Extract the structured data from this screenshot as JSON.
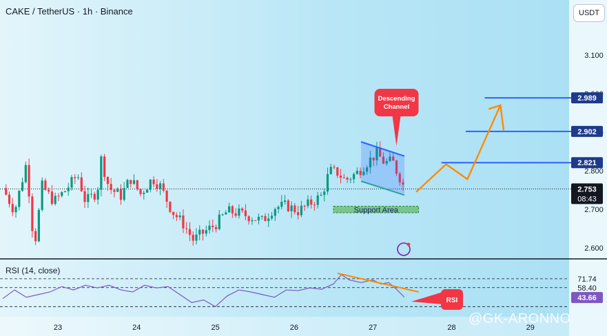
{
  "header": {
    "title": "CAKE / TetherUS · 1h · Binance"
  },
  "currency_label": "USDT",
  "watermark": "@GK-ARONNO",
  "annotations": {
    "channel": [
      "Descending",
      "Channel"
    ],
    "support": "Support Area",
    "rsi": "RSI"
  },
  "colors": {
    "up": "#089981",
    "down": "#f23645",
    "level": "#2962ff",
    "projection": "#ff8a00",
    "callout": "#f23645",
    "support_fill": "#66bb6a",
    "rsi_line": "#7e57c2"
  },
  "chart_data": [
    {
      "type": "candlestick",
      "x_ticks": [
        "23",
        "24",
        "25",
        "26",
        "27",
        "28",
        "29"
      ],
      "y_ticks": [
        "3.100",
        "3.000",
        "2.900",
        "2.800",
        "2.700",
        "2.600"
      ],
      "ylim": [
        2.56,
        3.16
      ],
      "current_price": {
        "label": "2.753",
        "countdown": "08:43"
      },
      "levels": [
        {
          "label": "2.989",
          "value": 2.989
        },
        {
          "label": "2.902",
          "value": 2.902
        },
        {
          "label": "2.821",
          "value": 2.821
        }
      ],
      "support_area": [
        2.691,
        2.708
      ],
      "descending_channel": {
        "upper": [
          [
            26.85,
            2.875
          ],
          [
            27.4,
            2.838
          ]
        ],
        "lower": [
          [
            26.85,
            2.773
          ],
          [
            27.4,
            2.737
          ]
        ]
      },
      "projected_path": [
        [
          27.55,
          2.745
        ],
        [
          27.93,
          2.817
        ],
        [
          28.2,
          2.778
        ],
        [
          28.62,
          2.97
        ],
        [
          28.66,
          2.945
        ]
      ],
      "price_path": [
        [
          22.3,
          2.755
        ],
        [
          22.45,
          2.695
        ],
        [
          22.6,
          2.82
        ],
        [
          22.7,
          2.6
        ],
        [
          22.8,
          2.76
        ],
        [
          22.95,
          2.72
        ],
        [
          23.1,
          2.75
        ],
        [
          23.25,
          2.79
        ],
        [
          23.35,
          2.72
        ],
        [
          23.5,
          2.745
        ],
        [
          23.55,
          2.83
        ],
        [
          23.65,
          2.755
        ],
        [
          23.8,
          2.735
        ],
        [
          23.92,
          2.78
        ],
        [
          24.05,
          2.74
        ],
        [
          24.2,
          2.78
        ],
        [
          24.3,
          2.76
        ],
        [
          24.45,
          2.695
        ],
        [
          24.6,
          2.66
        ],
        [
          24.72,
          2.62
        ],
        [
          24.85,
          2.64
        ],
        [
          25.0,
          2.66
        ],
        [
          25.15,
          2.695
        ],
        [
          25.3,
          2.69
        ],
        [
          25.45,
          2.68
        ],
        [
          25.6,
          2.67
        ],
        [
          25.75,
          2.705
        ],
        [
          25.9,
          2.71
        ],
        [
          26.05,
          2.695
        ],
        [
          26.2,
          2.715
        ],
        [
          26.35,
          2.735
        ],
        [
          26.45,
          2.8
        ],
        [
          26.55,
          2.795
        ],
        [
          26.65,
          2.775
        ],
        [
          26.8,
          2.795
        ],
        [
          26.92,
          2.82
        ],
        [
          27.05,
          2.845
        ],
        [
          27.15,
          2.82
        ],
        [
          27.25,
          2.825
        ],
        [
          27.3,
          2.8
        ],
        [
          27.35,
          2.78
        ],
        [
          27.4,
          2.755
        ]
      ]
    },
    {
      "type": "line",
      "title": "RSI (14, close)",
      "ylim": [
        20,
        85
      ],
      "levels": [
        {
          "label": "71.74",
          "value": 71.74
        },
        {
          "label": "58.40",
          "value": 58.4
        }
      ],
      "current": {
        "label": "43.66",
        "value": 43.66
      },
      "trendline": [
        [
          26.55,
          80
        ],
        [
          27.58,
          52
        ]
      ],
      "x": [
        22.3,
        22.45,
        22.6,
        22.75,
        22.9,
        23.05,
        23.2,
        23.35,
        23.5,
        23.65,
        23.8,
        23.95,
        24.1,
        24.25,
        24.4,
        24.55,
        24.7,
        24.85,
        25.0,
        25.15,
        25.3,
        25.45,
        25.6,
        25.75,
        25.9,
        26.05,
        26.2,
        26.35,
        26.5,
        26.6,
        26.7,
        26.85,
        27.0,
        27.1,
        27.2,
        27.3,
        27.4
      ],
      "values": [
        42,
        55,
        44,
        48,
        52,
        60,
        55,
        62,
        58,
        62,
        55,
        52,
        62,
        58,
        60,
        48,
        36,
        40,
        30,
        46,
        55,
        52,
        48,
        44,
        55,
        54,
        58,
        56,
        64,
        78,
        70,
        66,
        70,
        64,
        66,
        56,
        44
      ]
    }
  ]
}
